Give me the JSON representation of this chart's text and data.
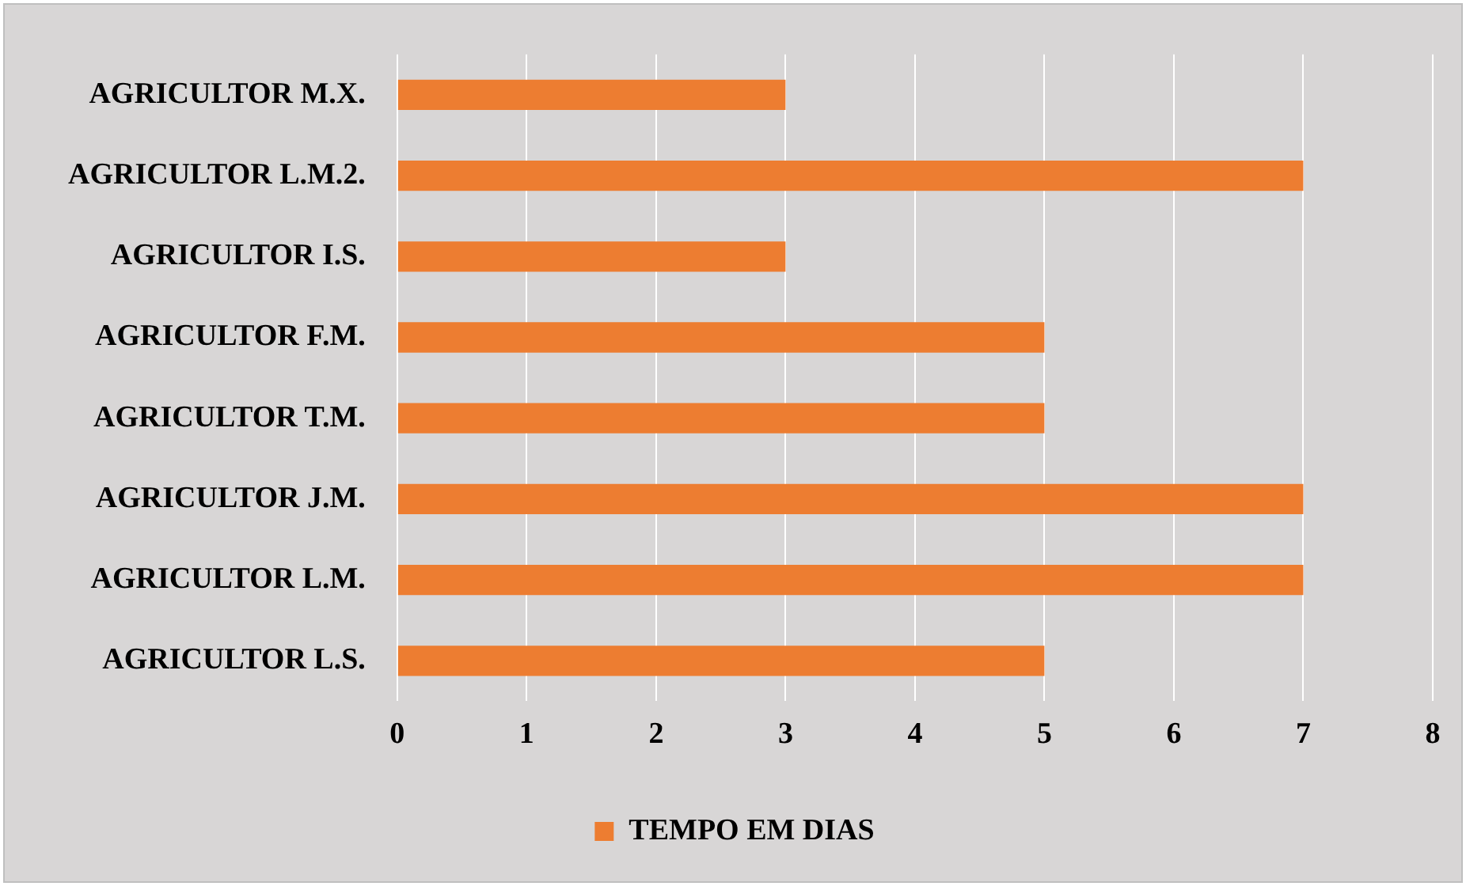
{
  "chart_data": {
    "type": "bar",
    "orientation": "horizontal",
    "categories": [
      "AGRICULTOR M.X.",
      "AGRICULTOR L.M.2.",
      "AGRICULTOR I.S.",
      "AGRICULTOR F.M.",
      "AGRICULTOR T.M.",
      "AGRICULTOR J.M.",
      "AGRICULTOR L.M.",
      "AGRICULTOR L.S."
    ],
    "series": [
      {
        "name": "TEMPO EM DIAS",
        "color": "#ed7d31",
        "values": [
          3,
          7,
          3,
          5,
          5,
          7,
          7,
          5
        ]
      }
    ],
    "xlim": [
      0,
      8
    ],
    "xticks": [
      0,
      1,
      2,
      3,
      4,
      5,
      6,
      7,
      8
    ],
    "grid": "x",
    "legend": "bottom"
  }
}
